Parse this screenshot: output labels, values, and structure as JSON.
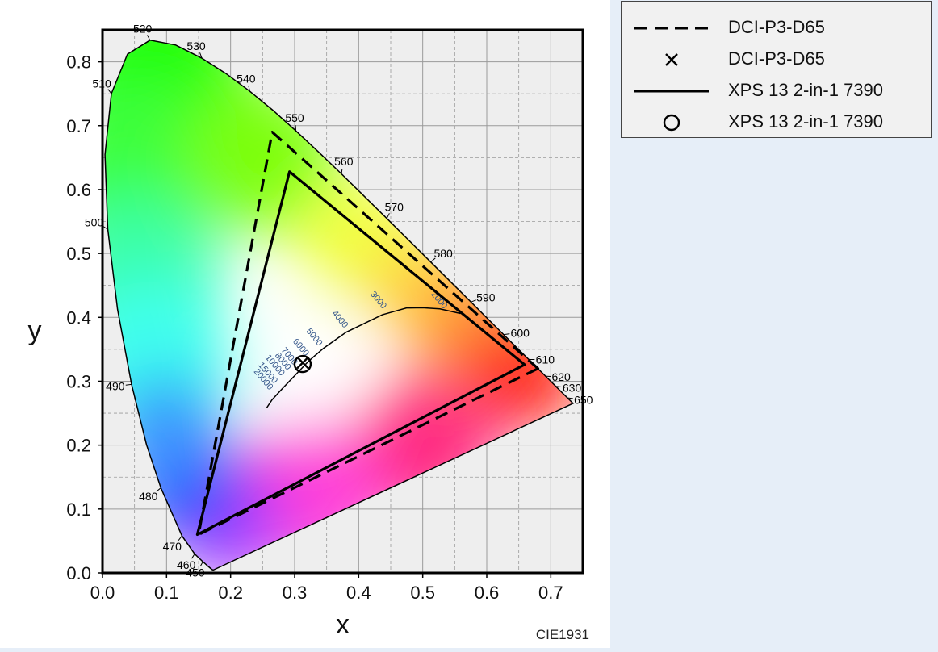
{
  "chart_data": {
    "type": "scatter",
    "title": "",
    "xlabel": "x",
    "ylabel": "y",
    "xlim": [
      0.0,
      0.75
    ],
    "ylim": [
      0.0,
      0.85
    ],
    "xticks": [
      "0.0",
      "0.1",
      "0.2",
      "0.3",
      "0.4",
      "0.5",
      "0.6",
      "0.7"
    ],
    "yticks": [
      "0.0",
      "0.1",
      "0.2",
      "0.3",
      "0.4",
      "0.5",
      "0.6",
      "0.7",
      "0.8"
    ],
    "grid": true,
    "legend_position": "right",
    "footer": "CIE1931",
    "spectral_locus_labels": [
      {
        "nm": "450",
        "x": 0.157,
        "y": 0.018
      },
      {
        "nm": "460",
        "x": 0.144,
        "y": 0.03
      },
      {
        "nm": "470",
        "x": 0.124,
        "y": 0.058
      },
      {
        "nm": "480",
        "x": 0.091,
        "y": 0.133
      },
      {
        "nm": "490",
        "x": 0.045,
        "y": 0.295
      },
      {
        "nm": "500",
        "x": 0.008,
        "y": 0.538
      },
      {
        "nm": "510",
        "x": 0.014,
        "y": 0.75
      },
      {
        "nm": "520",
        "x": 0.074,
        "y": 0.834
      },
      {
        "nm": "530",
        "x": 0.155,
        "y": 0.806
      },
      {
        "nm": "540",
        "x": 0.23,
        "y": 0.754
      },
      {
        "nm": "550",
        "x": 0.302,
        "y": 0.692
      },
      {
        "nm": "560",
        "x": 0.373,
        "y": 0.624
      },
      {
        "nm": "570",
        "x": 0.444,
        "y": 0.555
      },
      {
        "nm": "580",
        "x": 0.513,
        "y": 0.487
      },
      {
        "nm": "590",
        "x": 0.575,
        "y": 0.424
      },
      {
        "nm": "600",
        "x": 0.627,
        "y": 0.373
      },
      {
        "nm": "610",
        "x": 0.666,
        "y": 0.334
      },
      {
        "nm": "620",
        "x": 0.691,
        "y": 0.308
      },
      {
        "nm": "630",
        "x": 0.708,
        "y": 0.292
      },
      {
        "nm": "650",
        "x": 0.726,
        "y": 0.274
      }
    ],
    "planckian_labels": [
      "2000",
      "3000",
      "4000",
      "5000",
      "6000",
      "7000",
      "8000",
      "10000",
      "15000",
      "20000"
    ],
    "series": [
      {
        "name": "DCI-P3-D65",
        "kind": "gamut",
        "style": "dashed",
        "points": [
          [
            0.68,
            0.32
          ],
          [
            0.265,
            0.69
          ],
          [
            0.15,
            0.06
          ]
        ]
      },
      {
        "name": "DCI-P3-D65",
        "kind": "whitepoint",
        "marker": "x",
        "points": [
          [
            0.3127,
            0.329
          ]
        ]
      },
      {
        "name": "XPS 13 2-in-1 7390",
        "kind": "gamut",
        "style": "solid",
        "points": [
          [
            0.659,
            0.326
          ],
          [
            0.292,
            0.628
          ],
          [
            0.148,
            0.06
          ]
        ]
      },
      {
        "name": "XPS 13 2-in-1 7390",
        "kind": "whitepoint",
        "marker": "o",
        "points": [
          [
            0.3125,
            0.327
          ]
        ]
      }
    ]
  },
  "legend": {
    "items": [
      {
        "label": "DCI-P3-D65",
        "symbol": "dashed-line"
      },
      {
        "label": "DCI-P3-D65",
        "symbol": "x-marker"
      },
      {
        "label": "XPS 13 2-in-1 7390",
        "symbol": "solid-line"
      },
      {
        "label": "XPS 13 2-in-1 7390",
        "symbol": "circle-marker"
      }
    ]
  },
  "colors": {
    "axes": "#000000",
    "grid": "#9a9a9a",
    "plot_background": "#eeeeee",
    "page_background": "#e6eef8",
    "planckian_label": "#33558a"
  }
}
